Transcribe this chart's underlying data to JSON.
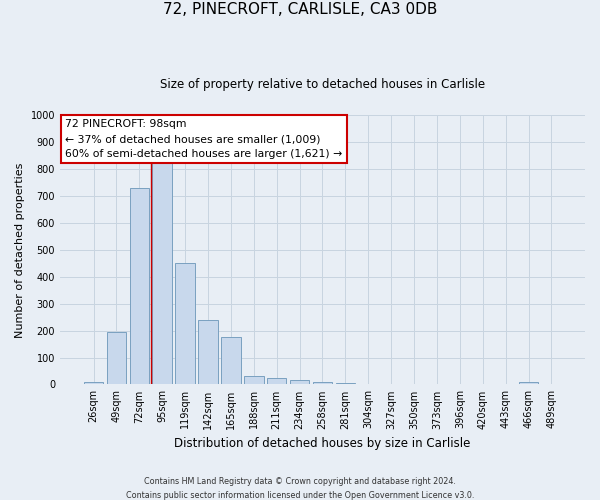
{
  "title": "72, PINECROFT, CARLISLE, CA3 0DB",
  "subtitle": "Size of property relative to detached houses in Carlisle",
  "xlabel": "Distribution of detached houses by size in Carlisle",
  "ylabel": "Number of detached properties",
  "bar_labels": [
    "26sqm",
    "49sqm",
    "72sqm",
    "95sqm",
    "119sqm",
    "142sqm",
    "165sqm",
    "188sqm",
    "211sqm",
    "234sqm",
    "258sqm",
    "281sqm",
    "304sqm",
    "327sqm",
    "350sqm",
    "373sqm",
    "396sqm",
    "420sqm",
    "443sqm",
    "466sqm",
    "489sqm"
  ],
  "bar_values": [
    10,
    195,
    730,
    835,
    450,
    240,
    175,
    33,
    25,
    15,
    10,
    5,
    0,
    0,
    0,
    0,
    0,
    0,
    0,
    10,
    0
  ],
  "bar_color": "#c8d8ec",
  "bar_edge_color": "#7aa0c0",
  "red_line_index": 3,
  "annotation_title": "72 PINECROFT: 98sqm",
  "annotation_line1": "← 37% of detached houses are smaller (1,009)",
  "annotation_line2": "60% of semi-detached houses are larger (1,621) →",
  "annotation_box_color": "#ffffff",
  "annotation_box_edge_color": "#cc0000",
  "ylim": [
    0,
    1000
  ],
  "yticks": [
    0,
    100,
    200,
    300,
    400,
    500,
    600,
    700,
    800,
    900,
    1000
  ],
  "grid_color": "#c8d4e0",
  "bg_color": "#e8eef5",
  "footer_line1": "Contains HM Land Registry data © Crown copyright and database right 2024.",
  "footer_line2": "Contains public sector information licensed under the Open Government Licence v3.0."
}
